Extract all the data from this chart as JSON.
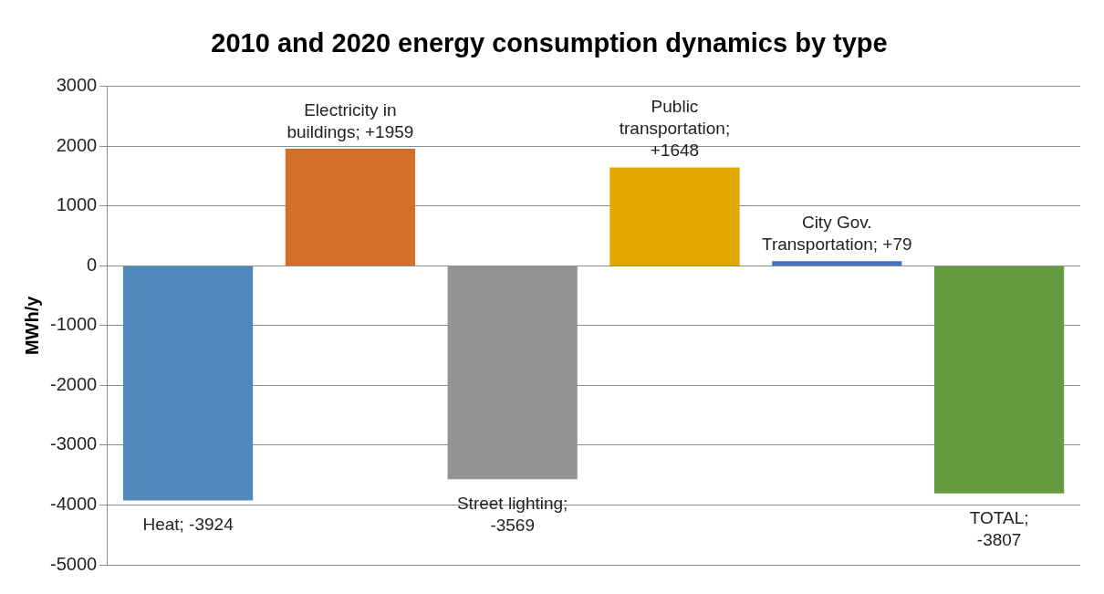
{
  "chart_data": {
    "type": "bar",
    "title": "2010 and 2020 energy consumption dynamics by type",
    "ylabel": "MWh/y",
    "categories": [
      null,
      null,
      null,
      null,
      null,
      null
    ],
    "values": [
      -3924,
      1959,
      -3569,
      1648,
      79,
      -3807
    ],
    "colors": [
      "#4f88bb",
      "#d46f2a",
      "#939393",
      "#e2a800",
      "#4473c4",
      "#629c3f"
    ],
    "value_labels": [
      "Heat; -3924",
      "Electricity in\nbuildings; +1959",
      "Street lighting;\n-3569",
      "Public\ntransportation;\n+1648",
      "City Gov.\nTransportation; +79",
      "TOTAL;\n-3807"
    ],
    "ylim": [
      -5000,
      3000
    ],
    "yticks": [
      -5000,
      -4000,
      -3000,
      -2000,
      -1000,
      0,
      1000,
      2000,
      3000
    ],
    "grid": "y",
    "legend": false,
    "tick_labels": "y"
  }
}
